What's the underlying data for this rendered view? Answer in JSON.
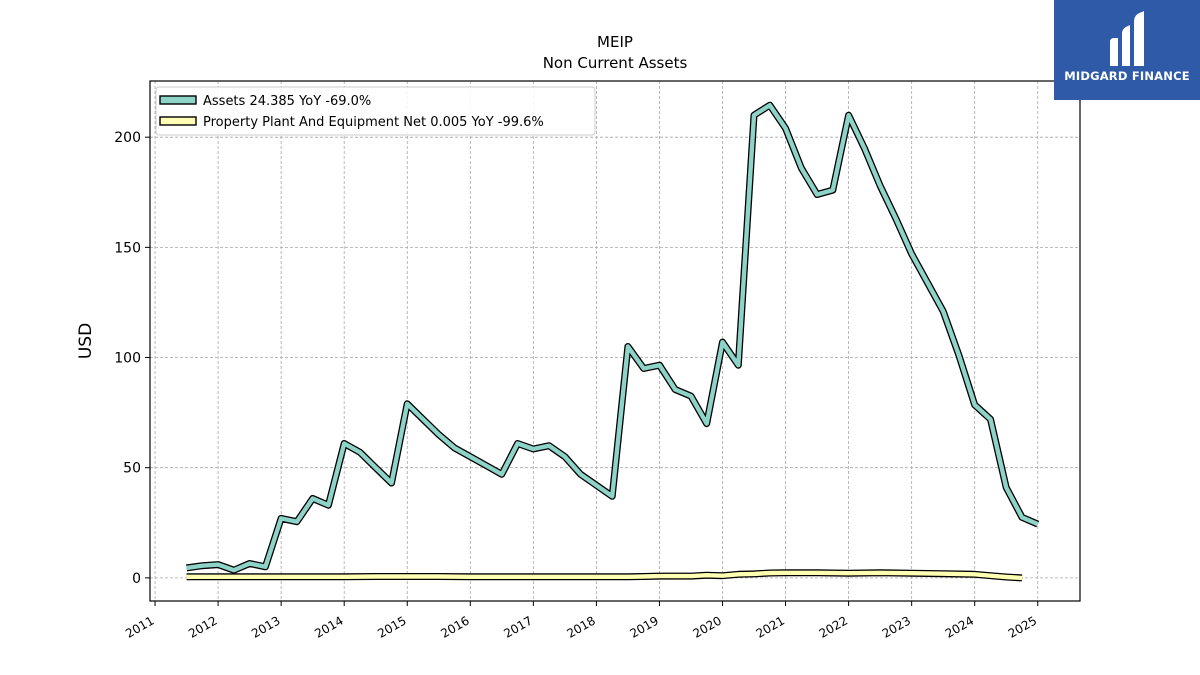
{
  "chart_data": {
    "type": "line",
    "title": "MEIP",
    "subtitle": "Non Current  Assets",
    "ylabel": "USD",
    "xlabel": "",
    "xlim": [
      2010.92,
      2025.67
    ],
    "ylim": [
      -10.5,
      225.5
    ],
    "yticks": [
      0,
      50,
      100,
      150,
      200
    ],
    "xticks": [
      "2011",
      "2012",
      "2013",
      "2014",
      "2015",
      "2016",
      "2017",
      "2018",
      "2019",
      "2020",
      "2021",
      "2022",
      "2023",
      "2024",
      "2025"
    ],
    "grid": true,
    "legend_position": "upper-left",
    "series": [
      {
        "name": "Assets  24.385 YoY -69.0%",
        "color": "#8dd3c7",
        "x": [
          2011.5,
          2011.75,
          2012.0,
          2012.25,
          2012.5,
          2012.75,
          2013.0,
          2013.25,
          2013.5,
          2013.75,
          2014.0,
          2014.25,
          2014.5,
          2014.75,
          2015.0,
          2015.25,
          2015.5,
          2015.75,
          2016.0,
          2016.25,
          2016.5,
          2016.75,
          2017.0,
          2017.25,
          2017.5,
          2017.75,
          2018.0,
          2018.25,
          2018.5,
          2018.75,
          2019.0,
          2019.25,
          2019.5,
          2019.75,
          2020.0,
          2020.25,
          2020.5,
          2020.75,
          2021.0,
          2021.25,
          2021.5,
          2021.75,
          2022.0,
          2022.25,
          2022.5,
          2022.75,
          2023.0,
          2023.25,
          2023.5,
          2023.75,
          2024.0,
          2024.25,
          2024.5,
          2024.75,
          2025.0
        ],
        "values": [
          4.5,
          5.5,
          6.0,
          3.5,
          6.5,
          5.0,
          27.0,
          25.5,
          36.0,
          33.0,
          61.0,
          57.0,
          50.0,
          43.0,
          79.0,
          72.0,
          65.0,
          59.0,
          55.0,
          51.0,
          47.0,
          61.0,
          58.5,
          60.0,
          55.0,
          47.0,
          42.0,
          37.0,
          105.0,
          95.0,
          96.5,
          85.5,
          82.5,
          70.0,
          107.0,
          96.5,
          210.0,
          214.5,
          204.0,
          186.0,
          174.0,
          176.0,
          210.0,
          195.0,
          178.0,
          163.0,
          147.0,
          134.0,
          121.0,
          101.0,
          78.5,
          72.0,
          41.0,
          27.5,
          24.4
        ]
      },
      {
        "name": "Property Plant And Equipment Net  0.005 YoY -99.6%",
        "color": "#ffffb3",
        "x": [
          2011.5,
          2012.0,
          2012.5,
          2013.0,
          2013.5,
          2014.0,
          2014.5,
          2015.0,
          2015.5,
          2016.0,
          2016.5,
          2017.0,
          2017.5,
          2018.0,
          2018.5,
          2018.75,
          2019.0,
          2019.5,
          2019.75,
          2020.0,
          2020.25,
          2020.5,
          2020.75,
          2021.0,
          2021.5,
          2022.0,
          2022.5,
          2023.0,
          2023.5,
          2024.0,
          2024.25,
          2024.5,
          2024.75
        ],
        "values": [
          0.5,
          0.5,
          0.5,
          0.5,
          0.5,
          0.5,
          0.6,
          0.6,
          0.6,
          0.5,
          0.5,
          0.5,
          0.5,
          0.5,
          0.5,
          0.6,
          0.8,
          0.8,
          1.2,
          1.0,
          1.6,
          1.8,
          2.2,
          2.3,
          2.3,
          2.1,
          2.3,
          2.1,
          1.9,
          1.6,
          1.0,
          0.4,
          0.005
        ]
      }
    ]
  },
  "logo": {
    "text": "MIDGARD FINANCE",
    "background": "#2f5aa8"
  }
}
